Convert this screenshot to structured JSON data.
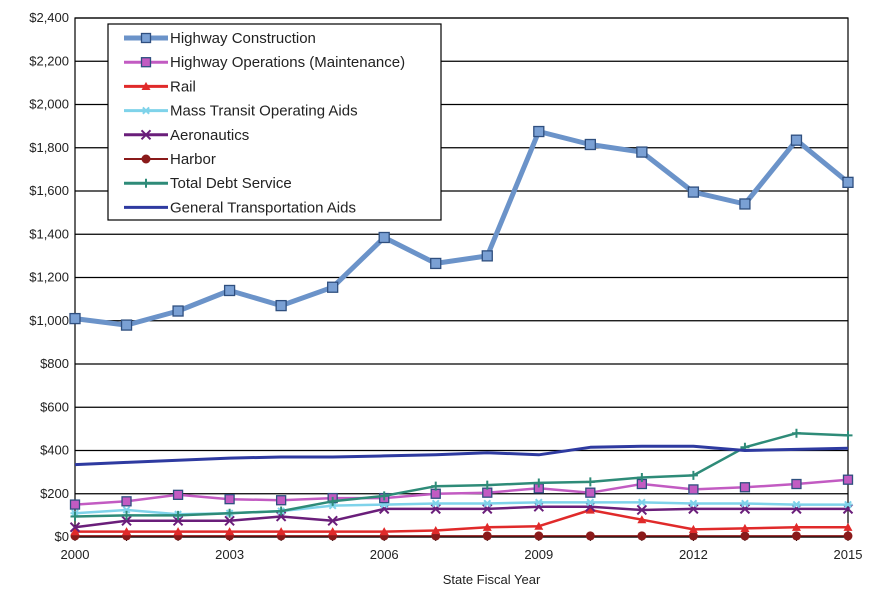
{
  "chart_data": {
    "type": "line",
    "title": "",
    "xlabel": "State Fiscal Year",
    "ylabel": "",
    "x": [
      2000,
      2001,
      2002,
      2003,
      2004,
      2005,
      2006,
      2007,
      2008,
      2009,
      2010,
      2011,
      2012,
      2013,
      2014,
      2015
    ],
    "x_tick_labels": [
      "2000",
      "2003",
      "2006",
      "2009",
      "2012",
      "2015"
    ],
    "x_tick_values": [
      2000,
      2003,
      2006,
      2009,
      2012,
      2015
    ],
    "xlim": [
      2000,
      2015
    ],
    "ylim": [
      0,
      2400
    ],
    "y_ticks": [
      0,
      200,
      400,
      600,
      800,
      1000,
      1200,
      1400,
      1600,
      1800,
      2000,
      2200,
      2400
    ],
    "y_tick_labels": [
      "$0",
      "$200",
      "$400",
      "$600",
      "$800",
      "$1,000",
      "$1,200",
      "$1,400",
      "$1,600",
      "$1,800",
      "$2,000",
      "$2,200",
      "$2,400"
    ],
    "grid": "horizontal",
    "legend_position": "top-left",
    "series": [
      {
        "name": "Highway Construction",
        "color": "#6b93c9",
        "marker": "square",
        "width": 5,
        "values": [
          1010,
          980,
          1045,
          1140,
          1070,
          1155,
          1385,
          1265,
          1300,
          1875,
          1815,
          1780,
          1595,
          1540,
          1835,
          1640
        ]
      },
      {
        "name": "Highway Operations (Maintenance)",
        "color": "#c25bc2",
        "marker": "square",
        "width": 2.5,
        "values": [
          150,
          165,
          195,
          175,
          170,
          180,
          180,
          200,
          205,
          225,
          205,
          245,
          220,
          230,
          245,
          265
        ]
      },
      {
        "name": "Rail",
        "color": "#e02a2a",
        "marker": "triangle",
        "width": 2.5,
        "values": [
          25,
          25,
          25,
          25,
          25,
          25,
          25,
          30,
          45,
          50,
          125,
          80,
          35,
          40,
          45,
          45
        ]
      },
      {
        "name": "Mass Transit Operating Aids",
        "color": "#7fd3ea",
        "marker": "star",
        "width": 2.5,
        "values": [
          110,
          125,
          105,
          110,
          120,
          145,
          150,
          155,
          155,
          160,
          160,
          160,
          155,
          155,
          150,
          150
        ]
      },
      {
        "name": "Aeronautics",
        "color": "#6a1e7a",
        "marker": "x",
        "width": 2.5,
        "values": [
          45,
          75,
          75,
          75,
          95,
          75,
          130,
          130,
          130,
          140,
          140,
          125,
          130,
          130,
          130,
          130
        ]
      },
      {
        "name": "Harbor",
        "color": "#8a1a1a",
        "marker": "circle",
        "width": 1.5,
        "values": [
          5,
          5,
          5,
          5,
          5,
          5,
          5,
          5,
          5,
          5,
          5,
          5,
          5,
          5,
          5,
          5
        ]
      },
      {
        "name": "Total Debt Service",
        "color": "#2e8b78",
        "marker": "plus",
        "width": 2.5,
        "values": [
          95,
          100,
          100,
          110,
          120,
          165,
          190,
          235,
          240,
          250,
          255,
          275,
          285,
          415,
          480,
          470
        ]
      },
      {
        "name": "General Transportation Aids",
        "color": "#2e3aa0",
        "marker": "none",
        "width": 3,
        "values": [
          335,
          345,
          355,
          365,
          370,
          370,
          375,
          380,
          390,
          380,
          415,
          420,
          420,
          400,
          405,
          410
        ]
      }
    ]
  }
}
